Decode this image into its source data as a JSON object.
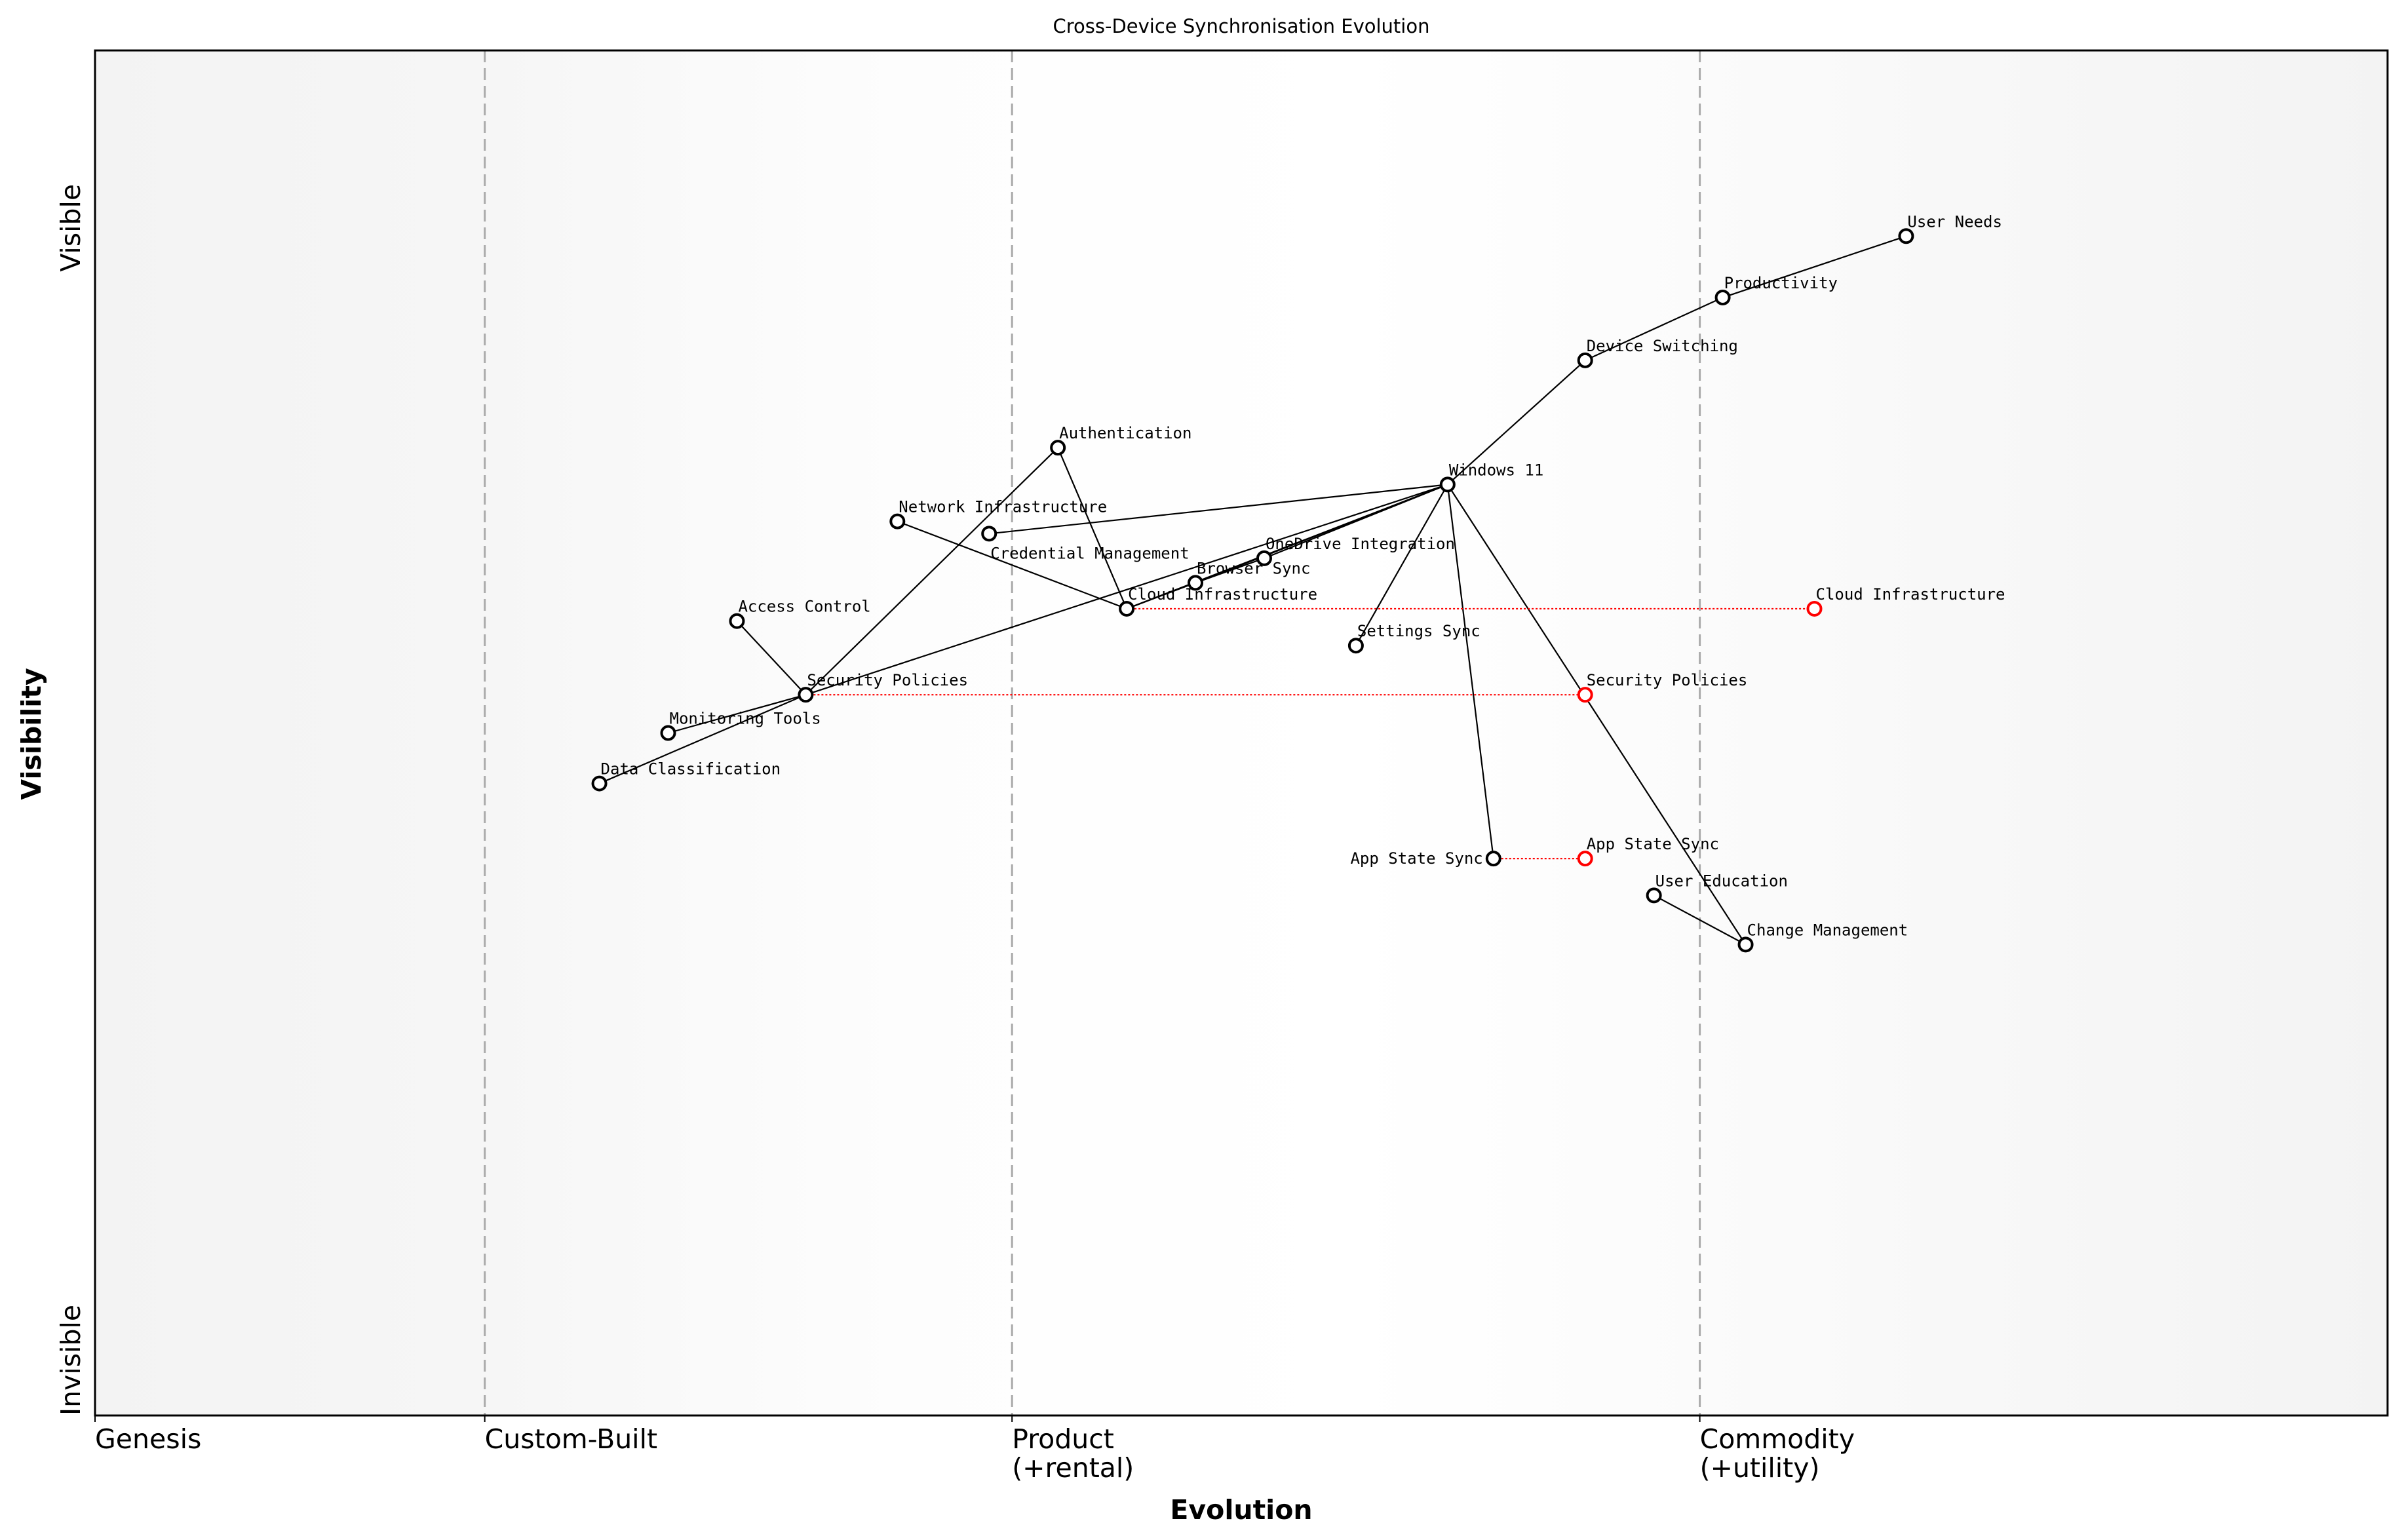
{
  "chart_data": {
    "type": "wardley-map",
    "title": "Cross-Device Synchronisation Evolution",
    "xlabel": "Evolution",
    "ylabel": "Visibility",
    "xlim": [
      0,
      1
    ],
    "ylim": [
      0,
      1
    ],
    "y_ticks": [
      {
        "label": "Invisible",
        "value": 0
      },
      {
        "label": "Visible",
        "value": 0.87
      }
    ],
    "stages": [
      {
        "label": "Genesis",
        "value": 0
      },
      {
        "label": "Custom-Built",
        "value": 0.17
      },
      {
        "label": "Product\n(+rental)",
        "value": 0.4
      },
      {
        "label": "Commodity\n(+utility)",
        "value": 0.7
      }
    ],
    "nodes": [
      {
        "id": "user-needs",
        "label": "User Needs",
        "evolution": 0.79,
        "visibility": 0.864
      },
      {
        "id": "productivity",
        "label": "Productivity",
        "evolution": 0.71,
        "visibility": 0.819
      },
      {
        "id": "device-switching",
        "label": "Device Switching",
        "evolution": 0.65,
        "visibility": 0.773
      },
      {
        "id": "windows-11",
        "label": "Windows 11",
        "evolution": 0.59,
        "visibility": 0.682
      },
      {
        "id": "authentication",
        "label": "Authentication",
        "evolution": 0.42,
        "visibility": 0.709
      },
      {
        "id": "network-infrastructure",
        "label": "Network Infrastructure",
        "evolution": 0.35,
        "visibility": 0.655
      },
      {
        "id": "credential-management",
        "label": "Credential Management",
        "evolution": 0.39,
        "visibility": 0.646
      },
      {
        "id": "onedrive-integration",
        "label": "OneDrive Integration",
        "evolution": 0.51,
        "visibility": 0.628
      },
      {
        "id": "browser-sync",
        "label": "Browser Sync",
        "evolution": 0.48,
        "visibility": 0.61
      },
      {
        "id": "cloud-infrastructure",
        "label": "Cloud Infrastructure",
        "evolution": 0.45,
        "visibility": 0.591
      },
      {
        "id": "settings-sync",
        "label": "Settings Sync",
        "evolution": 0.55,
        "visibility": 0.564
      },
      {
        "id": "access-control",
        "label": "Access Control",
        "evolution": 0.28,
        "visibility": 0.582
      },
      {
        "id": "security-policies",
        "label": "Security Policies",
        "evolution": 0.31,
        "visibility": 0.528
      },
      {
        "id": "monitoring-tools",
        "label": "Monitoring Tools",
        "evolution": 0.25,
        "visibility": 0.5
      },
      {
        "id": "data-classification",
        "label": "Data Classification",
        "evolution": 0.22,
        "visibility": 0.463
      },
      {
        "id": "app-state-sync",
        "label": "App State Sync",
        "evolution": 0.61,
        "visibility": 0.408
      },
      {
        "id": "user-education",
        "label": "User Education",
        "evolution": 0.68,
        "visibility": 0.381
      },
      {
        "id": "change-management",
        "label": "Change Management",
        "evolution": 0.72,
        "visibility": 0.345
      }
    ],
    "evolved_nodes": [
      {
        "from": "cloud-infrastructure",
        "label": "Cloud Infrastructure",
        "evolution": 0.75,
        "visibility": 0.591
      },
      {
        "from": "security-policies",
        "label": "Security Policies",
        "evolution": 0.65,
        "visibility": 0.528
      },
      {
        "from": "app-state-sync",
        "label": "App State Sync",
        "evolution": 0.65,
        "visibility": 0.408
      }
    ],
    "edges": [
      [
        "user-needs",
        "productivity"
      ],
      [
        "productivity",
        "device-switching"
      ],
      [
        "device-switching",
        "windows-11"
      ],
      [
        "windows-11",
        "credential-management"
      ],
      [
        "windows-11",
        "onedrive-integration"
      ],
      [
        "windows-11",
        "browser-sync"
      ],
      [
        "windows-11",
        "cloud-infrastructure"
      ],
      [
        "windows-11",
        "security-policies"
      ],
      [
        "windows-11",
        "settings-sync"
      ],
      [
        "windows-11",
        "app-state-sync"
      ],
      [
        "windows-11",
        "change-management"
      ],
      [
        "onedrive-integration",
        "browser-sync"
      ],
      [
        "browser-sync",
        "cloud-infrastructure"
      ],
      [
        "authentication",
        "security-policies"
      ],
      [
        "authentication",
        "cloud-infrastructure"
      ],
      [
        "network-infrastructure",
        "cloud-infrastructure"
      ],
      [
        "access-control",
        "security-policies"
      ],
      [
        "security-policies",
        "monitoring-tools"
      ],
      [
        "security-policies",
        "data-classification"
      ],
      [
        "user-education",
        "change-management"
      ]
    ],
    "colors": {
      "node": "#000000",
      "evolved_node": "#ff0000",
      "evolution_line": "#ff0000",
      "stage_line": "#aaaaaa"
    },
    "grid": false
  }
}
